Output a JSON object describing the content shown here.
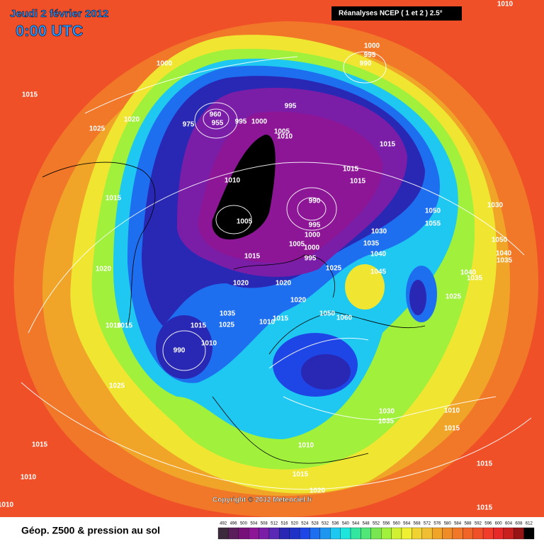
{
  "header": {
    "date": "Jeudi 2 février 2012",
    "time": "0:00 UTC",
    "source": "Réanalyses NCEP ( 1 et 2 ) 2.5°"
  },
  "footer": {
    "title": "Géop. Z500 & pression au sol",
    "copyright": "Copyright © 2012 Meteociel.fr"
  },
  "legend": {
    "levels": [
      492,
      496,
      500,
      504,
      508,
      512,
      516,
      520,
      524,
      528,
      532,
      536,
      540,
      544,
      548,
      552,
      556,
      560,
      564,
      568,
      572,
      576,
      580,
      584,
      588,
      592,
      596,
      600,
      604,
      608,
      612
    ],
    "colors": [
      "#3c2a3c",
      "#5a1e5a",
      "#78107a",
      "#8c1696",
      "#7a1ea8",
      "#5a2ab4",
      "#2828b4",
      "#1e32c8",
      "#1e46e6",
      "#1e6ef0",
      "#1e96f0",
      "#1ec8f0",
      "#1ee6dc",
      "#32e6a0",
      "#50e678",
      "#78e650",
      "#a0f03c",
      "#d2f032",
      "#f0f032",
      "#f0d232",
      "#f0be32",
      "#f0a528",
      "#f08c28",
      "#f07828",
      "#f06428",
      "#f05028",
      "#f03c28",
      "#e62828",
      "#c81e1e",
      "#961414",
      "#000000"
    ]
  },
  "isobar_labels": [
    "1010",
    "1000",
    "1000",
    "995",
    "990",
    "1015",
    "1020",
    "1025",
    "960",
    "955",
    "975",
    "995",
    "1000",
    "995",
    "1005",
    "1010",
    "1015",
    "1010",
    "1015",
    "1015",
    "1015",
    "990",
    "1005",
    "995",
    "1000",
    "1005",
    "1000",
    "995",
    "1050",
    "1055",
    "1030",
    "1030",
    "1035",
    "1040",
    "1045",
    "1025",
    "1015",
    "1020",
    "1020",
    "1020",
    "1020",
    "1050",
    "1040",
    "1035",
    "1040",
    "1035",
    "1025",
    "1035",
    "1025",
    "1015",
    "1015",
    "1010",
    "1050",
    "1060",
    "1010",
    "1015",
    "990",
    "1010",
    "1025",
    "1030",
    "1035",
    "1010",
    "1015",
    "1010",
    "1015",
    "1010",
    "1015",
    "1015",
    "1020",
    "1015",
    "1010"
  ]
}
